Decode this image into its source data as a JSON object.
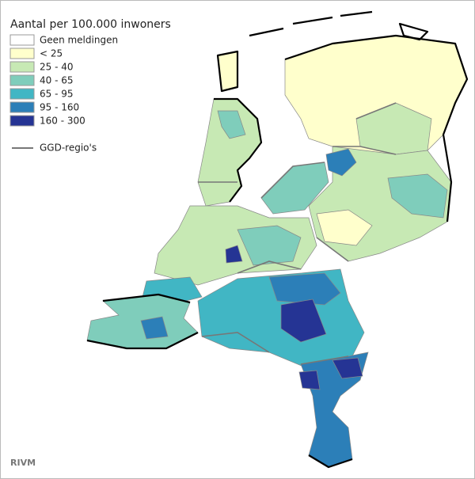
{
  "title": "Aantal per 100.000 inwoners",
  "legend": {
    "items": [
      {
        "label": "Geen meldingen",
        "color": "#ffffff"
      },
      {
        "label": "< 25",
        "color": "#ffffcc"
      },
      {
        "label": "25 - 40",
        "color": "#c7e9b4"
      },
      {
        "label": "40 - 65",
        "color": "#7fcdbb"
      },
      {
        "label": "65 - 95",
        "color": "#41b6c4"
      },
      {
        "label": "95 - 160",
        "color": "#2c7fb8"
      },
      {
        "label": "160 - 300",
        "color": "#253494"
      }
    ],
    "line_label": "GGD-regio's",
    "line_color": "#777777"
  },
  "source": "RIVM"
}
